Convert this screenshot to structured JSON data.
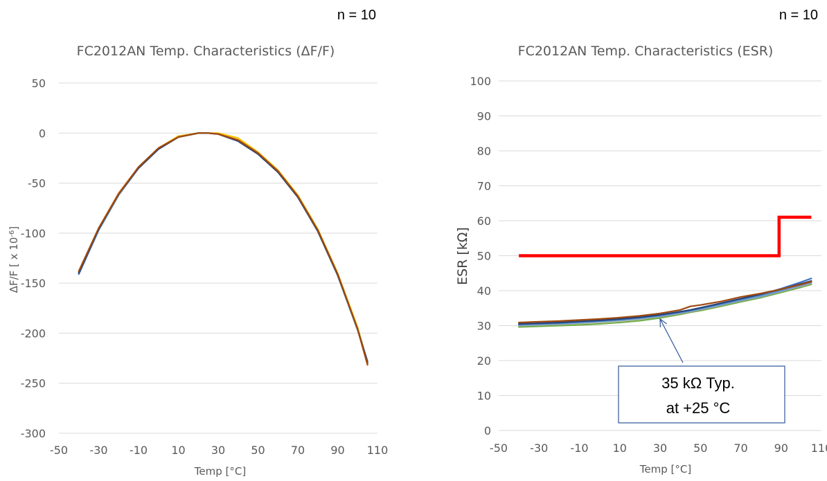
{
  "chart_data": [
    {
      "type": "line",
      "n_label": "n = 10",
      "title": "FC2012AN Temp. Characteristics (ΔF/F)",
      "xlabel": "Temp [°C]",
      "ylabel": "ΔF/F [ x 10",
      "ylabel_sup": "-6",
      "ylabel_end": "]",
      "xlim": [
        -50,
        110
      ],
      "ylim": [
        -300,
        50
      ],
      "xticks": [
        "-50",
        "-30",
        "-10",
        "10",
        "30",
        "50",
        "70",
        "90",
        "110"
      ],
      "yticks": [
        "50",
        "0",
        "-50",
        "-100",
        "-150",
        "-200",
        "-250",
        "-300"
      ],
      "grid": true,
      "x": [
        -40,
        -30,
        -20,
        -10,
        0,
        10,
        20,
        25,
        30,
        40,
        50,
        60,
        70,
        80,
        90,
        100,
        105
      ],
      "series": [
        {
          "color": "#4472C4",
          "values": [
            -141,
            -97,
            -62,
            -35,
            -16,
            -4,
            0,
            0,
            -1,
            -8,
            -21,
            -39,
            -64,
            -98,
            -142,
            -196,
            -228
          ]
        },
        {
          "color": "#A5A5A5",
          "values": [
            -140,
            -96,
            -61,
            -34,
            -15,
            -4,
            0,
            0,
            -1,
            -7,
            -20,
            -38,
            -63,
            -97,
            -141,
            -195,
            -229
          ]
        },
        {
          "color": "#FFC000",
          "values": [
            -139,
            -96,
            -61,
            -34,
            -15,
            -3,
            0,
            0,
            0,
            -5,
            -19,
            -37,
            -62,
            -96,
            -140,
            -194,
            -230
          ]
        },
        {
          "color": "#5B9BD5",
          "values": [
            -140,
            -97,
            -62,
            -35,
            -16,
            -4,
            0,
            0,
            -1,
            -8,
            -21,
            -39,
            -64,
            -98,
            -142,
            -197,
            -229
          ]
        },
        {
          "color": "#70AD47",
          "values": [
            -139,
            -96,
            -61,
            -34,
            -15,
            -4,
            0,
            0,
            -1,
            -7,
            -20,
            -38,
            -63,
            -97,
            -141,
            -196,
            -230
          ]
        },
        {
          "color": "#ED7D31",
          "values": [
            -138,
            -95,
            -60,
            -34,
            -15,
            -4,
            0,
            0,
            -1,
            -7,
            -20,
            -38,
            -63,
            -97,
            -141,
            -196,
            -232
          ]
        },
        {
          "color": "#264478",
          "values": [
            -140,
            -96,
            -61,
            -35,
            -16,
            -4,
            0,
            0,
            -1,
            -8,
            -21,
            -39,
            -64,
            -98,
            -142,
            -196,
            -229
          ]
        },
        {
          "color": "#9E480E",
          "values": [
            -138,
            -95,
            -61,
            -34,
            -15,
            -4,
            0,
            0,
            -1,
            -7,
            -20,
            -38,
            -63,
            -97,
            -141,
            -196,
            -231
          ]
        }
      ]
    },
    {
      "type": "line",
      "n_label": "n = 10",
      "title": "FC2012AN Temp. Characteristics (ESR)",
      "xlabel": "Temp [°C]",
      "ylabel": "ESR [kΩ]",
      "xlim": [
        -50,
        110
      ],
      "ylim": [
        0,
        100
      ],
      "xticks": [
        "-50",
        "-30",
        "-10",
        "10",
        "30",
        "50",
        "70",
        "90",
        "110"
      ],
      "yticks": [
        "100",
        "90",
        "80",
        "70",
        "60",
        "50",
        "40",
        "30",
        "20",
        "10",
        "0"
      ],
      "grid": true,
      "x": [
        -40,
        -30,
        -20,
        -10,
        0,
        10,
        20,
        30,
        40,
        45,
        50,
        60,
        70,
        80,
        90,
        100,
        105
      ],
      "series": [
        {
          "color": "#70AD47",
          "values": [
            29.6,
            29.8,
            30.0,
            30.2,
            30.5,
            30.9,
            31.4,
            32.2,
            33.2,
            33.8,
            34.3,
            35.5,
            36.8,
            38.0,
            39.5,
            41.0,
            41.8
          ]
        },
        {
          "color": "#A5A5A5",
          "values": [
            30.0,
            30.2,
            30.4,
            30.7,
            31.0,
            31.4,
            31.9,
            32.6,
            33.5,
            34.0,
            34.6,
            35.8,
            37.1,
            38.3,
            39.8,
            41.3,
            42.1
          ]
        },
        {
          "color": "#5B9BD5",
          "values": [
            30.2,
            30.4,
            30.6,
            30.9,
            31.2,
            31.6,
            32.1,
            32.8,
            33.7,
            34.2,
            34.8,
            36.0,
            37.3,
            38.5,
            40.0,
            41.6,
            42.4
          ]
        },
        {
          "color": "#4472C4",
          "values": [
            30.4,
            30.6,
            30.8,
            31.1,
            31.4,
            31.8,
            32.3,
            33.0,
            33.9,
            34.4,
            35.0,
            36.3,
            37.6,
            38.9,
            40.6,
            42.5,
            43.5
          ]
        },
        {
          "color": "#264478",
          "values": [
            30.5,
            30.7,
            30.9,
            31.2,
            31.5,
            31.9,
            32.4,
            33.1,
            34.0,
            34.5,
            35.1,
            36.4,
            37.7,
            39.0,
            40.4,
            42.0,
            42.8
          ]
        },
        {
          "color": "#9E480E",
          "values": [
            30.9,
            31.1,
            31.3,
            31.6,
            31.9,
            32.3,
            32.8,
            33.5,
            34.5,
            35.5,
            35.9,
            36.9,
            38.2,
            39.2,
            40.4,
            41.8,
            42.6
          ]
        }
      ],
      "spec_limit": {
        "color": "#FF0000",
        "x": [
          -40,
          89,
          89,
          105
        ],
        "values": [
          50,
          50,
          61,
          61
        ]
      },
      "annotation": {
        "lines": [
          "35 kΩ Typ.",
          "at +25 °C"
        ],
        "arrow_target": [
          30,
          32.5
        ]
      }
    }
  ]
}
